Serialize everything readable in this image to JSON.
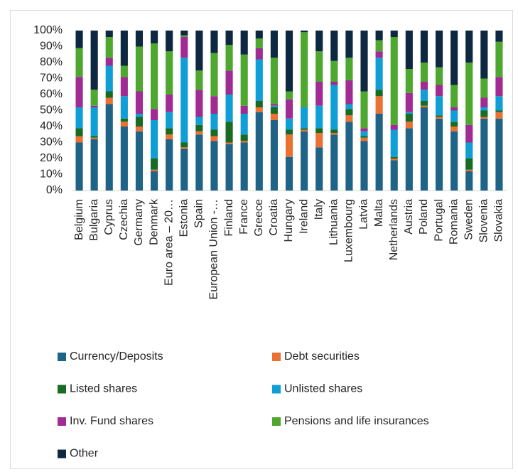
{
  "chart_data": {
    "type": "stacked_bar",
    "categories": [
      "Belgium",
      "Bulgaria",
      "Cyprus",
      "Czechia",
      "Germany",
      "Denmark",
      "Euro area – 20…",
      "Estonia",
      "Spain",
      "European Union -…",
      "Finland",
      "France",
      "Greece",
      "Croatia",
      "Hungary",
      "Ireland",
      "Italy",
      "Lithuania",
      "Luxembourg",
      "Latvia",
      "Malta",
      "Netherlands",
      "Austria",
      "Poland",
      "Portugal",
      "Romania",
      "Sweden",
      "Slovenia",
      "Slovakia"
    ],
    "series": [
      {
        "name": "Currency/Deposits",
        "color": "#1f6387",
        "values": [
          30,
          32,
          54,
          40,
          37,
          12,
          32,
          26,
          35,
          31,
          29,
          30,
          49,
          44,
          21,
          37,
          27,
          35,
          43,
          31,
          48,
          19,
          39,
          52,
          45,
          37,
          12,
          45,
          45
        ]
      },
      {
        "name": "Debt securities",
        "color": "#e97132",
        "values": [
          4,
          1,
          4,
          3,
          3,
          1,
          3,
          1,
          2,
          3,
          1,
          1,
          3,
          4,
          14,
          1,
          9,
          1,
          4,
          2,
          11,
          1,
          4,
          1,
          1,
          3,
          1,
          1,
          4
        ]
      },
      {
        "name": "Listed shares",
        "color": "#196b24",
        "values": [
          5,
          1,
          4,
          2,
          6,
          7,
          4,
          3,
          4,
          4,
          13,
          4,
          4,
          4,
          3,
          1,
          3,
          2,
          4,
          1,
          4,
          1,
          5,
          3,
          1,
          3,
          7,
          4,
          1
        ]
      },
      {
        "name": "Unlisted shares",
        "color": "#0f9ed5",
        "values": [
          13,
          18,
          16,
          14,
          2,
          24,
          10,
          53,
          5,
          10,
          17,
          13,
          26,
          1,
          7,
          13,
          14,
          28,
          3,
          3,
          20,
          17,
          1,
          7,
          12,
          7,
          10,
          2,
          9
        ]
      },
      {
        "name": "Inv. Fund shares",
        "color": "#a02b93",
        "values": [
          19,
          1,
          5,
          12,
          14,
          7,
          11,
          13,
          17,
          11,
          15,
          5,
          7,
          1,
          12,
          0,
          15,
          2,
          15,
          2,
          4,
          3,
          12,
          5,
          7,
          2,
          11,
          6,
          12
        ]
      },
      {
        "name": "Pensions and life insurances",
        "color": "#4ea72e",
        "values": [
          18,
          10,
          13,
          7,
          28,
          41,
          27,
          1,
          12,
          27,
          16,
          32,
          6,
          29,
          5,
          47,
          19,
          13,
          14,
          23,
          7,
          55,
          15,
          12,
          11,
          14,
          39,
          12,
          22
        ]
      },
      {
        "name": "Other",
        "color": "#0e2841",
        "values": [
          11,
          37,
          4,
          22,
          10,
          8,
          13,
          3,
          25,
          14,
          9,
          15,
          5,
          17,
          38,
          1,
          13,
          19,
          17,
          38,
          6,
          4,
          24,
          20,
          23,
          34,
          20,
          30,
          7
        ]
      }
    ],
    "ylim": [
      0,
      100
    ],
    "yticks": [
      {
        "value": 0,
        "label": "0%"
      },
      {
        "value": 10,
        "label": "10%"
      },
      {
        "value": 20,
        "label": "20%"
      },
      {
        "value": 30,
        "label": "30%"
      },
      {
        "value": 40,
        "label": "40%"
      },
      {
        "value": 50,
        "label": "50%"
      },
      {
        "value": 60,
        "label": "60%"
      },
      {
        "value": 70,
        "label": "70%"
      },
      {
        "value": 80,
        "label": "80%"
      },
      {
        "value": 90,
        "label": "90%"
      },
      {
        "value": 100,
        "label": "100%"
      }
    ],
    "grid": false
  }
}
